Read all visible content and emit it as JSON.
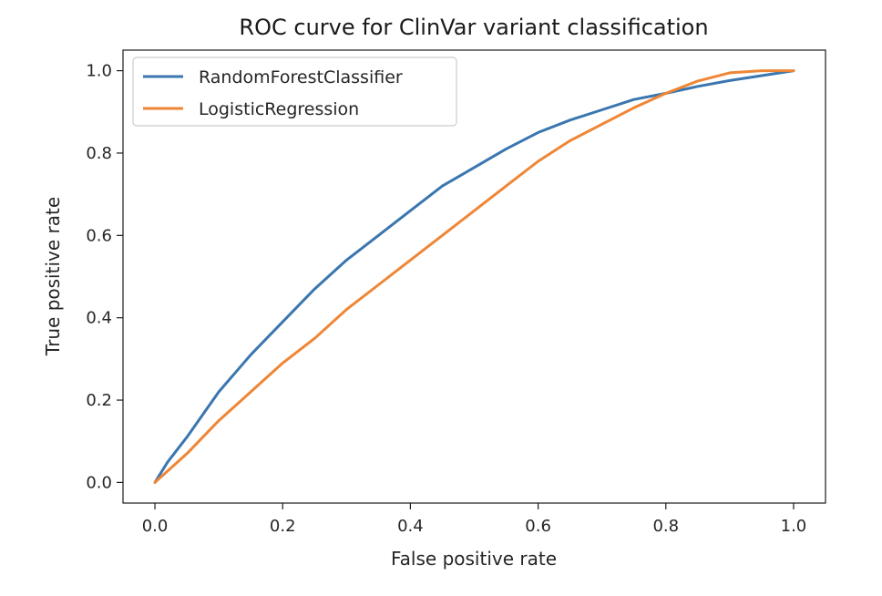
{
  "chart_data": {
    "type": "line",
    "title": "ROC curve for ClinVar variant classification",
    "xlabel": "False positive rate",
    "ylabel": "True positive rate",
    "xlim": [
      -0.05,
      1.05
    ],
    "ylim": [
      -0.05,
      1.05
    ],
    "xticks": [
      0.0,
      0.2,
      0.4,
      0.6,
      0.8,
      1.0
    ],
    "yticks": [
      0.0,
      0.2,
      0.4,
      0.6,
      0.8,
      1.0
    ],
    "xtick_labels": [
      "0.0",
      "0.2",
      "0.4",
      "0.6",
      "0.8",
      "1.0"
    ],
    "ytick_labels": [
      "0.0",
      "0.2",
      "0.4",
      "0.6",
      "0.8",
      "1.0"
    ],
    "grid": false,
    "legend_position": "top-left",
    "series": [
      {
        "name": "RandomForestClassifier",
        "color": "#3a76af",
        "x": [
          0.0,
          0.02,
          0.05,
          0.1,
          0.15,
          0.2,
          0.25,
          0.3,
          0.35,
          0.4,
          0.45,
          0.5,
          0.55,
          0.6,
          0.65,
          0.7,
          0.75,
          0.8,
          0.85,
          0.9,
          0.95,
          1.0
        ],
        "y": [
          0.0,
          0.05,
          0.11,
          0.22,
          0.31,
          0.39,
          0.47,
          0.54,
          0.6,
          0.66,
          0.72,
          0.765,
          0.81,
          0.85,
          0.88,
          0.905,
          0.93,
          0.945,
          0.962,
          0.976,
          0.988,
          1.0
        ]
      },
      {
        "name": "LogisticRegression",
        "color": "#ef8636",
        "x": [
          0.0,
          0.05,
          0.1,
          0.15,
          0.2,
          0.25,
          0.3,
          0.35,
          0.4,
          0.45,
          0.5,
          0.55,
          0.6,
          0.65,
          0.7,
          0.75,
          0.8,
          0.85,
          0.9,
          0.95,
          1.0
        ],
        "y": [
          0.0,
          0.07,
          0.15,
          0.22,
          0.29,
          0.35,
          0.42,
          0.48,
          0.54,
          0.6,
          0.66,
          0.72,
          0.78,
          0.83,
          0.87,
          0.91,
          0.945,
          0.975,
          0.995,
          1.0,
          1.0
        ]
      }
    ]
  }
}
